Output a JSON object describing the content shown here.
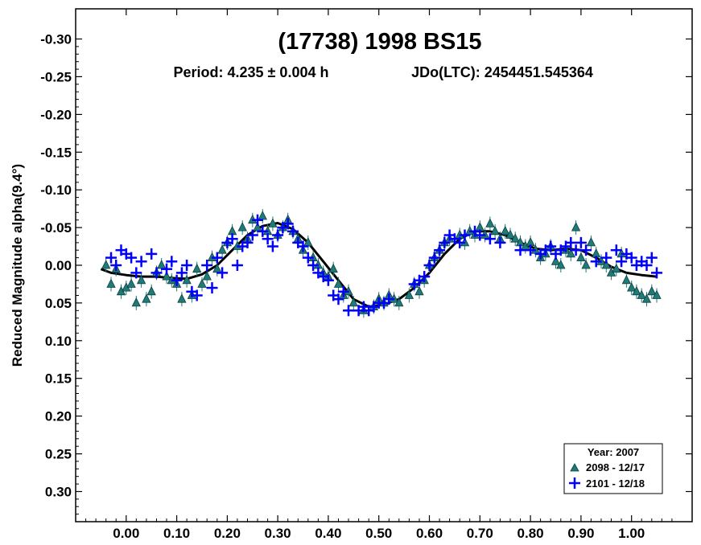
{
  "chart_data": {
    "type": "scatter",
    "title": "(17738) 1998 BS15",
    "subtitle_period": "Period: 4.235 ± 0.004 h",
    "subtitle_epoch": "JDo(LTC): 2454451.545364",
    "xlabel": "",
    "ylabel": "Reduced Magnitude alpha(9.4°)",
    "xlim": [
      -0.1,
      1.12
    ],
    "ylim": [
      -0.34,
      0.34
    ],
    "y_inverted": true,
    "grid": false,
    "x_ticks": [
      "0.00",
      "0.10",
      "0.20",
      "0.30",
      "0.40",
      "0.50",
      "0.60",
      "0.70",
      "0.80",
      "0.90",
      "1.00"
    ],
    "x_tick_values": [
      0,
      0.1,
      0.2,
      0.3,
      0.4,
      0.5,
      0.6,
      0.7,
      0.8,
      0.9,
      1.0
    ],
    "y_ticks": [
      "-0.30",
      "-0.25",
      "-0.20",
      "-0.15",
      "-0.10",
      "-0.05",
      "0.00",
      "0.05",
      "0.10",
      "0.15",
      "0.20",
      "0.25",
      "0.30"
    ],
    "y_tick_values": [
      -0.3,
      -0.25,
      -0.2,
      -0.15,
      -0.1,
      -0.05,
      0,
      0.05,
      0.1,
      0.15,
      0.2,
      0.25,
      0.3
    ],
    "legend": {
      "title": "Year: 2007",
      "placement": "bottom-right",
      "entries": [
        "2098 - 12/17",
        "2101 - 12/18"
      ]
    },
    "series": [
      {
        "name": "2098 - 12/17",
        "marker": "triangle",
        "color": "#1f7a78",
        "x": [
          -0.04,
          -0.03,
          -0.02,
          -0.01,
          0.0,
          0.01,
          0.02,
          0.03,
          0.04,
          0.05,
          0.06,
          0.07,
          0.08,
          0.09,
          0.1,
          0.11,
          0.12,
          0.13,
          0.14,
          0.15,
          0.16,
          0.17,
          0.18,
          0.19,
          0.2,
          0.21,
          0.22,
          0.23,
          0.24,
          0.25,
          0.26,
          0.27,
          0.28,
          0.29,
          0.3,
          0.31,
          0.32,
          0.33,
          0.34,
          0.35,
          0.36,
          0.37,
          0.38,
          0.39,
          0.4,
          0.41,
          0.42,
          0.43,
          0.44,
          0.45,
          0.47,
          0.49,
          0.5,
          0.51,
          0.52,
          0.53,
          0.54,
          0.56,
          0.57,
          0.58,
          0.59,
          0.6,
          0.61,
          0.62,
          0.63,
          0.64,
          0.66,
          0.67,
          0.68,
          0.69,
          0.7,
          0.71,
          0.72,
          0.73,
          0.74,
          0.75,
          0.76,
          0.77,
          0.78,
          0.79,
          0.8,
          0.81,
          0.82,
          0.83,
          0.84,
          0.85,
          0.86,
          0.87,
          0.88,
          0.89,
          0.9,
          0.91,
          0.92,
          0.93,
          0.94,
          0.95,
          0.96,
          0.97,
          0.98,
          0.99,
          1.0,
          1.01,
          1.02,
          1.03,
          1.04,
          1.05
        ],
        "y": [
          0.0,
          0.025,
          0.005,
          0.035,
          0.03,
          0.025,
          0.05,
          0.02,
          0.045,
          0.035,
          0.01,
          0.0,
          0.015,
          0.02,
          0.025,
          0.045,
          0.02,
          0.04,
          0.005,
          0.025,
          0.015,
          -0.01,
          0.005,
          -0.02,
          -0.03,
          -0.045,
          -0.025,
          -0.05,
          -0.035,
          -0.06,
          -0.05,
          -0.065,
          -0.045,
          -0.055,
          -0.04,
          -0.05,
          -0.06,
          -0.045,
          -0.035,
          -0.02,
          -0.03,
          -0.01,
          0.0,
          0.01,
          0.015,
          0.005,
          0.025,
          0.04,
          0.035,
          0.05,
          0.06,
          0.055,
          0.045,
          0.05,
          0.04,
          0.045,
          0.05,
          0.04,
          0.025,
          0.035,
          0.02,
          0.0,
          -0.01,
          -0.02,
          -0.03,
          -0.035,
          -0.04,
          -0.03,
          -0.045,
          -0.04,
          -0.05,
          -0.04,
          -0.055,
          -0.045,
          -0.035,
          -0.045,
          -0.04,
          -0.035,
          -0.03,
          -0.025,
          -0.03,
          -0.02,
          -0.01,
          -0.015,
          -0.025,
          -0.005,
          0.0,
          -0.02,
          -0.015,
          -0.05,
          -0.01,
          0.0,
          -0.03,
          -0.015,
          -0.005,
          0.0,
          0.01,
          0.005,
          -0.015,
          0.02,
          0.03,
          0.035,
          0.04,
          0.045,
          0.035,
          0.04
        ]
      },
      {
        "name": "2101 - 12/18",
        "marker": "cross",
        "color": "#0000ff",
        "x": [
          -0.03,
          -0.02,
          -0.01,
          0.0,
          0.01,
          0.02,
          0.03,
          0.05,
          0.06,
          0.08,
          0.09,
          0.1,
          0.11,
          0.12,
          0.13,
          0.14,
          0.16,
          0.17,
          0.18,
          0.19,
          0.2,
          0.21,
          0.22,
          0.23,
          0.24,
          0.25,
          0.26,
          0.27,
          0.28,
          0.29,
          0.3,
          0.31,
          0.32,
          0.33,
          0.34,
          0.35,
          0.36,
          0.37,
          0.38,
          0.39,
          0.4,
          0.41,
          0.42,
          0.43,
          0.44,
          0.46,
          0.47,
          0.48,
          0.49,
          0.5,
          0.51,
          0.52,
          0.57,
          0.58,
          0.59,
          0.6,
          0.61,
          0.62,
          0.63,
          0.64,
          0.65,
          0.66,
          0.67,
          0.69,
          0.7,
          0.72,
          0.74,
          0.78,
          0.8,
          0.82,
          0.83,
          0.84,
          0.85,
          0.86,
          0.87,
          0.88,
          0.89,
          0.9,
          0.91,
          0.93,
          0.95,
          0.97,
          0.98,
          0.99,
          1.0,
          1.01,
          1.02,
          1.03,
          1.04,
          1.05
        ],
        "y": [
          -0.01,
          0.0,
          -0.02,
          -0.015,
          -0.01,
          0.01,
          -0.005,
          -0.015,
          0.01,
          0.005,
          -0.005,
          0.02,
          0.01,
          0.0,
          0.035,
          0.04,
          0.0,
          0.03,
          -0.01,
          0.01,
          -0.03,
          -0.035,
          0.0,
          -0.025,
          -0.03,
          -0.04,
          -0.06,
          -0.045,
          -0.035,
          -0.025,
          -0.04,
          -0.05,
          -0.055,
          -0.045,
          -0.03,
          -0.025,
          -0.01,
          0.0,
          0.01,
          0.015,
          0.02,
          0.04,
          0.045,
          0.035,
          0.06,
          0.06,
          0.055,
          0.06,
          0.055,
          0.05,
          0.05,
          0.045,
          0.025,
          0.02,
          0.015,
          0.0,
          -0.01,
          -0.02,
          -0.03,
          -0.04,
          -0.035,
          -0.03,
          -0.04,
          -0.045,
          -0.04,
          -0.035,
          -0.03,
          -0.02,
          -0.02,
          -0.015,
          -0.02,
          -0.025,
          -0.015,
          -0.02,
          -0.025,
          -0.03,
          -0.02,
          -0.03,
          -0.02,
          -0.005,
          -0.01,
          -0.02,
          -0.005,
          -0.015,
          -0.01,
          0.0,
          -0.005,
          0.0,
          -0.01,
          0.01
        ]
      }
    ],
    "fit_curve": {
      "color": "#000000",
      "x": [
        -0.05,
        -0.03,
        0.0,
        0.03,
        0.06,
        0.09,
        0.12,
        0.15,
        0.18,
        0.21,
        0.24,
        0.27,
        0.3,
        0.33,
        0.36,
        0.39,
        0.42,
        0.45,
        0.48,
        0.51,
        0.54,
        0.57,
        0.6,
        0.63,
        0.66,
        0.69,
        0.72,
        0.75,
        0.78,
        0.81,
        0.84,
        0.87,
        0.9,
        0.93,
        0.96,
        0.99,
        1.02,
        1.05
      ],
      "y": [
        0.005,
        0.01,
        0.013,
        0.015,
        0.015,
        0.017,
        0.018,
        0.012,
        0.0,
        -0.02,
        -0.04,
        -0.052,
        -0.056,
        -0.048,
        -0.03,
        -0.005,
        0.02,
        0.045,
        0.055,
        0.052,
        0.045,
        0.03,
        0.01,
        -0.015,
        -0.035,
        -0.045,
        -0.045,
        -0.04,
        -0.03,
        -0.022,
        -0.02,
        -0.022,
        -0.02,
        -0.01,
        0.002,
        0.01,
        0.013,
        0.015
      ]
    }
  }
}
